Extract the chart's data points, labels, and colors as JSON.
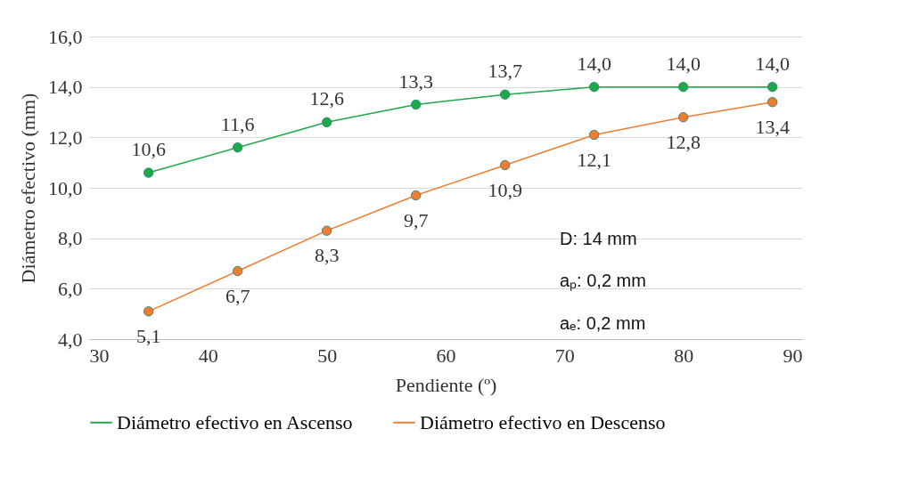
{
  "chart_data": {
    "type": "line",
    "xlabel": "Pendiente (º)",
    "ylabel": "Diámetro efectivo (mm)",
    "x": [
      35,
      42.5,
      50,
      57.5,
      65,
      72.5,
      80,
      87.5
    ],
    "series": [
      {
        "name": "Diámetro efectivo en Ascenso",
        "color": "#1fa84a",
        "values": [
          10.6,
          11.6,
          12.6,
          13.3,
          13.7,
          14.0,
          14.0,
          14.0
        ],
        "value_labels": [
          "10,6",
          "11,6",
          "12,6",
          "13,3",
          "13,7",
          "14,0",
          "14,0",
          "14,0"
        ]
      },
      {
        "name": "Diámetro efectivo en Descenso",
        "color": "#ed7d31",
        "values": [
          5.1,
          6.7,
          8.3,
          9.7,
          10.9,
          12.1,
          12.8,
          13.4
        ],
        "value_labels": [
          "5,1",
          "6,7",
          "8,3",
          "9,7",
          "10,9",
          "12,1",
          "12,8",
          "13,4"
        ]
      }
    ],
    "xlim": [
      30,
      90
    ],
    "xticks": [
      30,
      40,
      50,
      60,
      70,
      80,
      90
    ],
    "ylim": [
      4,
      16
    ],
    "yticks": [
      {
        "value": 4,
        "label": "4,0"
      },
      {
        "value": 6,
        "label": "6,0"
      },
      {
        "value": 8,
        "label": "8,0"
      },
      {
        "value": 10,
        "label": "10,0"
      },
      {
        "value": 12,
        "label": "12,0"
      },
      {
        "value": 14,
        "label": "14,0"
      },
      {
        "value": 16,
        "label": "16,0"
      }
    ],
    "grid": "y",
    "legend": "bottom",
    "marker": "circle",
    "line_style": "solid",
    "annotations": [
      "D: 14 mm",
      "aₚ: 0,2 mm",
      "aₑ: 0,2 mm"
    ]
  }
}
